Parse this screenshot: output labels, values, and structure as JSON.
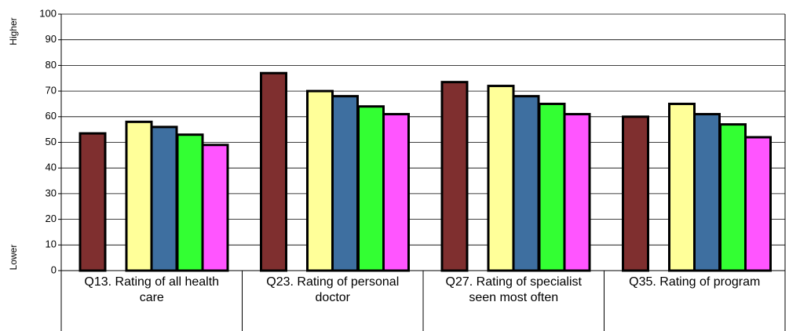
{
  "chart_data": {
    "type": "bar",
    "categories": [
      "Q13. Rating of all health care",
      "Q23. Rating of personal doctor",
      "Q27. Rating of specialist seen most often",
      "Q35. Rating of program"
    ],
    "series": [
      {
        "color": "#7f2f2f",
        "values": [
          53.5,
          77,
          73.5,
          60
        ]
      },
      {
        "color": "#ffff99",
        "values": [
          58,
          70,
          72,
          65
        ]
      },
      {
        "color": "#3e6fa0",
        "values": [
          56,
          68,
          68,
          61
        ]
      },
      {
        "color": "#33ff33",
        "values": [
          53,
          64,
          65,
          57
        ]
      },
      {
        "color": "#ff55ff",
        "values": [
          49,
          61,
          61,
          52
        ]
      }
    ],
    "y_top_label": "Higher",
    "y_bottom_label": "Lower",
    "ylim": [
      0,
      100
    ],
    "yticks": [
      0,
      10,
      20,
      30,
      40,
      50,
      60,
      70,
      80,
      90,
      100
    ],
    "grid": true
  }
}
